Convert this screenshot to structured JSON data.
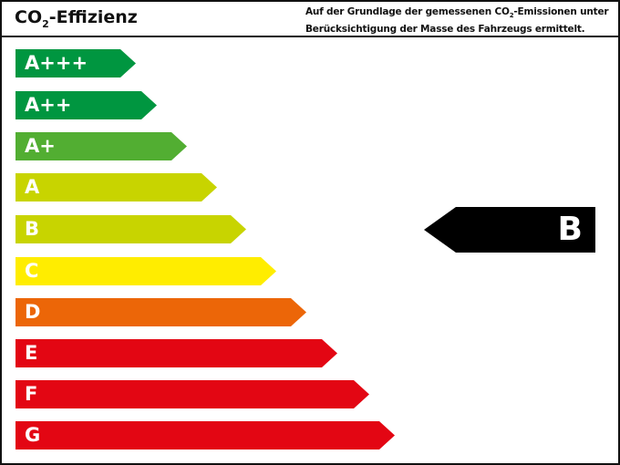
{
  "header": {
    "title_prefix": "CO",
    "title_sub": "2",
    "title_suffix": "-Effizienz",
    "desc_line1_a": "Auf der Grundlage der gemessenen CO",
    "desc_line1_sub": "2",
    "desc_line1_b": "-Emissionen unter",
    "desc_line2": "Berücksichtigung der Masse des Fahrzeugs ermittelt."
  },
  "classes": [
    {
      "label": "A+++",
      "color": "#009640"
    },
    {
      "label": "A++",
      "color": "#009640"
    },
    {
      "label": "A+",
      "color": "#52ae32"
    },
    {
      "label": "A",
      "color": "#c8d400"
    },
    {
      "label": "B",
      "color": "#c8d400"
    },
    {
      "label": "C",
      "color": "#ffed00"
    },
    {
      "label": "D",
      "color": "#ec6608"
    },
    {
      "label": "E",
      "color": "#e30613"
    },
    {
      "label": "F",
      "color": "#e30613"
    },
    {
      "label": "G",
      "color": "#e30613"
    }
  ],
  "rating": {
    "label": "B",
    "color": "#000000"
  }
}
